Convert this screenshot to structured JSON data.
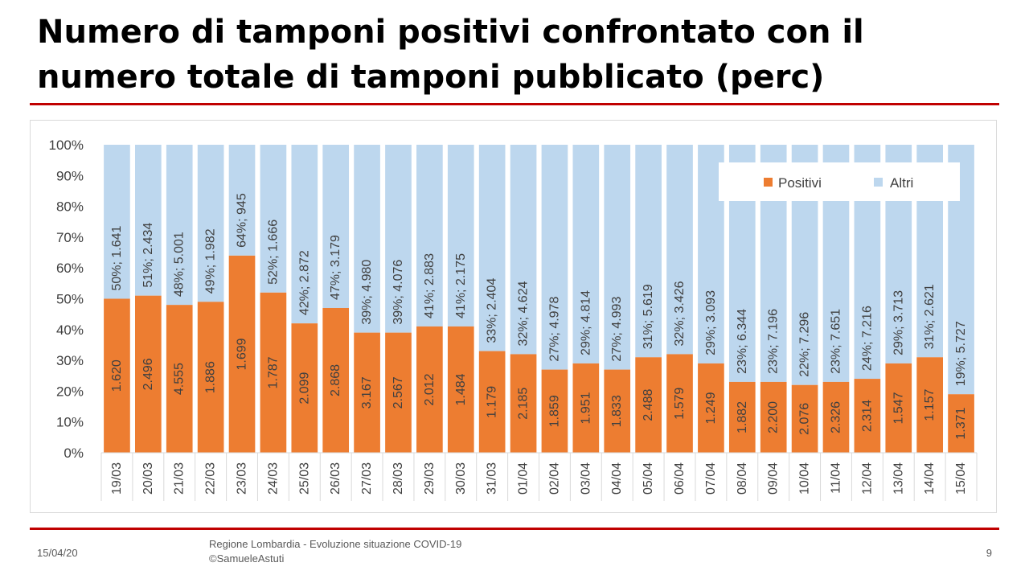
{
  "slide": {
    "title": "Numero di tamponi positivi confrontato con il numero totale di tamponi pubblicato (perc)",
    "footer_date": "15/04/20",
    "footer_source_line1": "Regione Lombardia - Evoluzione situazione COVID-19",
    "footer_source_line2": "©SamueleAstuti",
    "page_number": "9"
  },
  "colors": {
    "positivi": "#ed7d31",
    "altri": "#bdd7ee",
    "accent_rule": "#c00000",
    "axis_text": "#404040"
  },
  "chart_data": {
    "type": "bar",
    "stacked": "percent",
    "title": "",
    "xlabel": "",
    "ylabel": "",
    "ylim": [
      0,
      100
    ],
    "yticks": [
      "0%",
      "10%",
      "20%",
      "30%",
      "40%",
      "50%",
      "60%",
      "70%",
      "80%",
      "90%",
      "100%"
    ],
    "legend_position": "top-right",
    "categories": [
      "19/03",
      "20/03",
      "21/03",
      "22/03",
      "23/03",
      "24/03",
      "25/03",
      "26/03",
      "27/03",
      "28/03",
      "29/03",
      "30/03",
      "31/03",
      "01/04",
      "02/04",
      "03/04",
      "04/04",
      "05/04",
      "06/04",
      "07/04",
      "08/04",
      "09/04",
      "10/04",
      "11/04",
      "12/04",
      "13/04",
      "14/04",
      "15/04"
    ],
    "series": [
      {
        "name": "Positivi",
        "values": [
          50,
          51,
          48,
          49,
          64,
          52,
          42,
          47,
          39,
          39,
          41,
          41,
          33,
          32,
          27,
          29,
          27,
          31,
          32,
          29,
          23,
          23,
          22,
          23,
          24,
          29,
          31,
          19
        ],
        "labels": [
          "1.620",
          "2.496",
          "4.555",
          "1.886",
          "1.699",
          "1.787",
          "2.099",
          "2.868",
          "3.167",
          "2.567",
          "2.012",
          "1.484",
          "1.179",
          "2.185",
          "1.859",
          "1.951",
          "1.833",
          "2.488",
          "1.579",
          "1.249",
          "1.882",
          "2.200",
          "2.076",
          "2.326",
          "2.314",
          "1.547",
          "1.157",
          "1.371"
        ]
      },
      {
        "name": "Altri",
        "labels": [
          "50%; 1.641",
          "51%; 2.434",
          "48%; 5.001",
          "49%; 1.982",
          "64%; 945",
          "52%; 1.666",
          "42%; 2.872",
          "47%; 3.179",
          "39%; 4.980",
          "39%; 4.076",
          "41%; 2.883",
          "41%; 2.175",
          "33%; 2.404",
          "32%; 4.624",
          "27%; 4.978",
          "29%; 4.814",
          "27%; 4.993",
          "31%; 5.619",
          "32%; 3.426",
          "29%; 3.093",
          "23%; 6.344",
          "23%; 7.196",
          "22%; 7.296",
          "23%; 7.651",
          "24%; 7.216",
          "29%; 3.713",
          "31%; 2.621",
          "19%; 5.727"
        ]
      }
    ]
  }
}
